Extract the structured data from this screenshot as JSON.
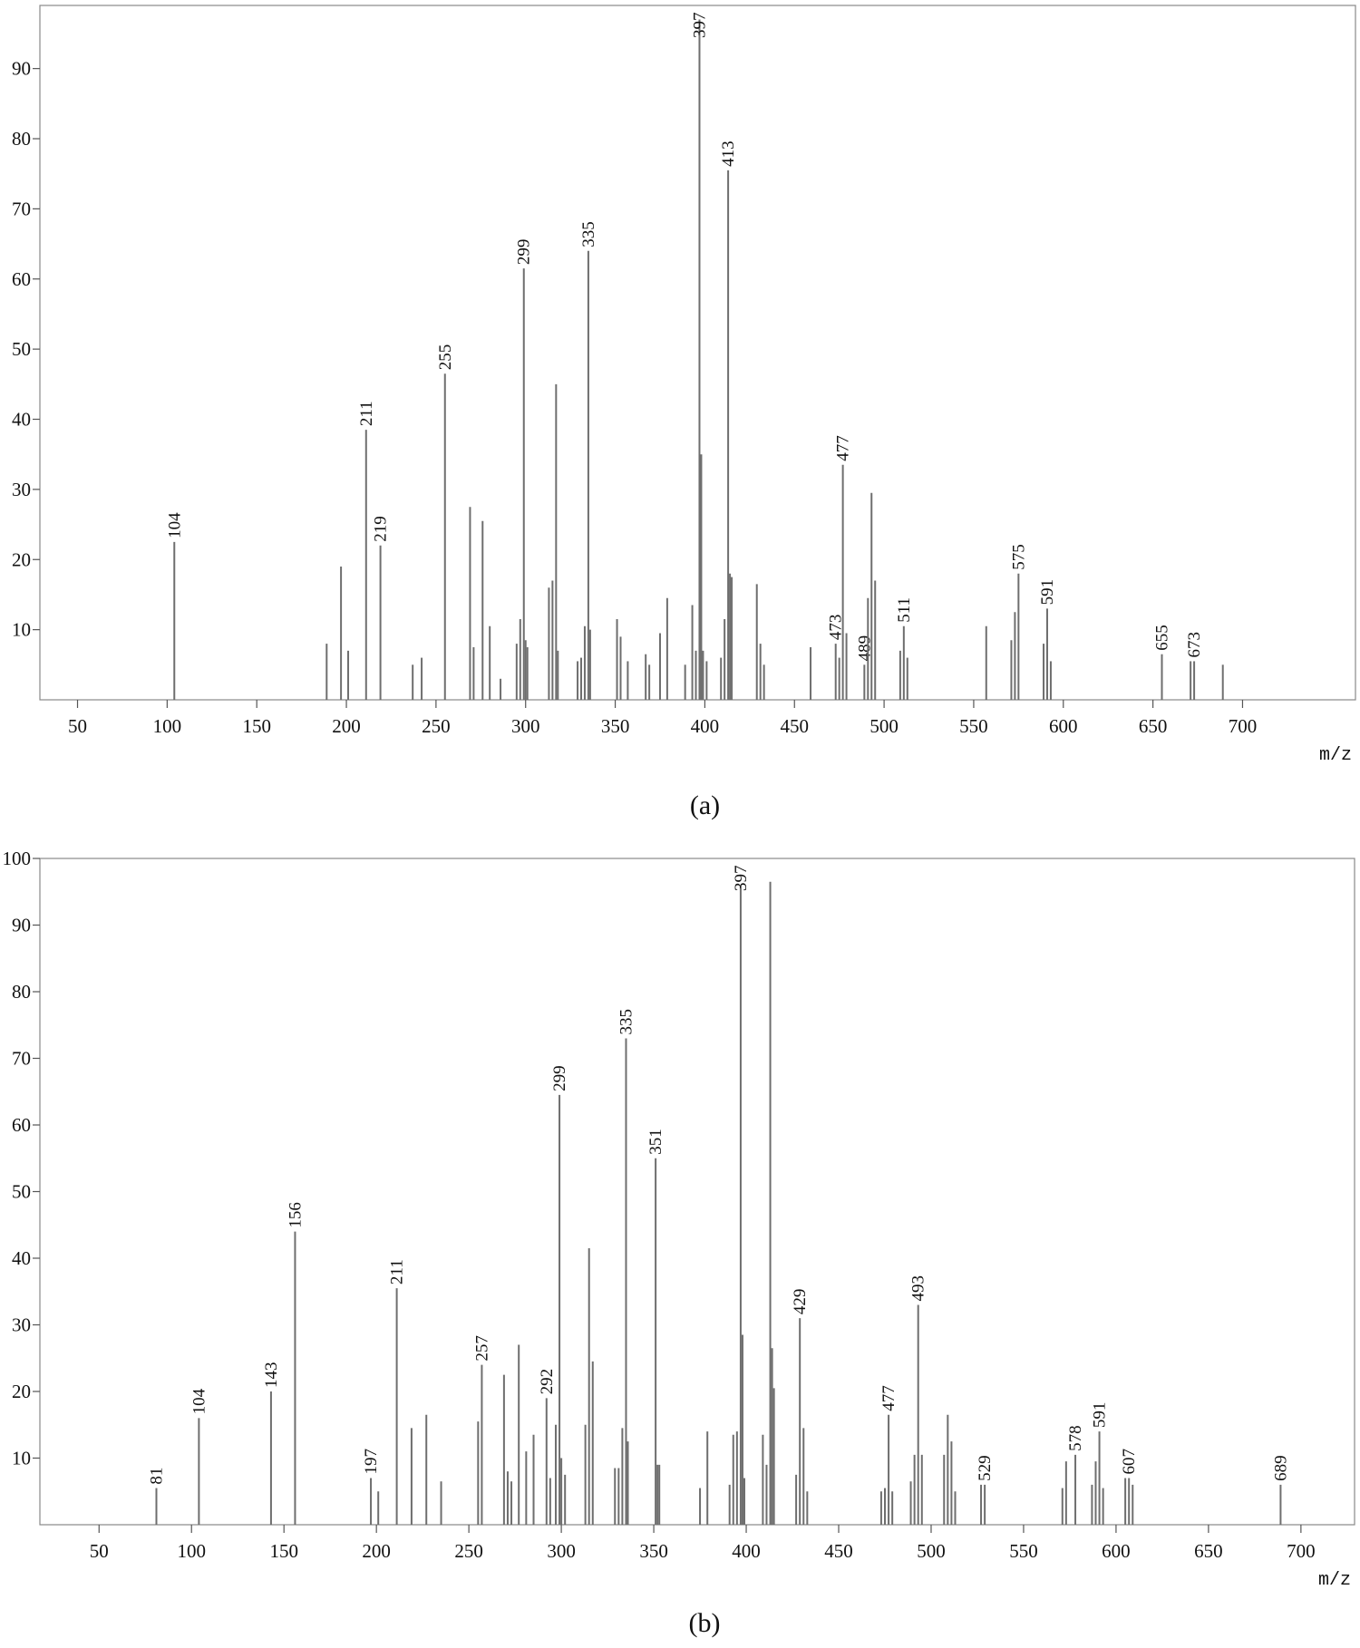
{
  "chart_data": [
    {
      "type": "bar",
      "caption": "(a)",
      "xlabel": "m/z",
      "color": "#6e6e6e",
      "xlim": [
        29,
        763
      ],
      "ylim": [
        0,
        99
      ],
      "xticks": [
        50,
        100,
        150,
        200,
        250,
        300,
        350,
        400,
        450,
        500,
        550,
        600,
        650,
        700
      ],
      "yticks": [
        10,
        20,
        30,
        40,
        50,
        60,
        70,
        80,
        90
      ],
      "x": [
        104,
        189,
        197,
        201,
        211,
        219,
        237,
        242,
        255,
        269,
        271,
        276,
        280,
        286,
        295,
        297,
        299,
        300,
        301,
        313,
        315,
        317,
        318,
        329,
        331,
        333,
        335,
        336,
        351,
        353,
        357,
        367,
        369,
        375,
        379,
        389,
        393,
        395,
        397,
        398,
        399,
        401,
        409,
        411,
        413,
        414,
        415,
        429,
        431,
        433,
        459,
        473,
        475,
        477,
        479,
        489,
        491,
        493,
        495,
        509,
        511,
        513,
        557,
        571,
        573,
        575,
        589,
        591,
        593,
        655,
        671,
        673,
        689
      ],
      "values": [
        22.5,
        8,
        19,
        7,
        38.5,
        22,
        5,
        6,
        46.5,
        27.5,
        7.5,
        25.5,
        10.5,
        3,
        8,
        11.5,
        61.5,
        8.5,
        7.5,
        16,
        17,
        45,
        7,
        5.5,
        6,
        10.5,
        64,
        10,
        11.5,
        9,
        5.5,
        6.5,
        5,
        9.5,
        14.5,
        5,
        13.5,
        7,
        97,
        35,
        7,
        5.5,
        6,
        11.5,
        75.5,
        18,
        17.5,
        16.5,
        8,
        5,
        7.5,
        8,
        6,
        33.5,
        9.5,
        5,
        14.5,
        29.5,
        17,
        7,
        10.5,
        6,
        10.5,
        8.5,
        12.5,
        18,
        8,
        13,
        5.5,
        6.5,
        5.5,
        5.5,
        5
      ],
      "labels": [
        "104",
        null,
        null,
        null,
        "211",
        "219",
        null,
        null,
        "255",
        null,
        null,
        null,
        null,
        null,
        null,
        null,
        "299",
        null,
        null,
        null,
        null,
        null,
        null,
        null,
        null,
        null,
        "335",
        null,
        null,
        null,
        null,
        null,
        null,
        null,
        null,
        null,
        null,
        null,
        "397",
        null,
        null,
        null,
        null,
        null,
        "413",
        null,
        null,
        null,
        null,
        null,
        null,
        "473",
        null,
        "477",
        null,
        "489",
        null,
        null,
        null,
        null,
        "511",
        null,
        null,
        null,
        null,
        "575",
        null,
        "591",
        null,
        "655",
        null,
        "673",
        null
      ]
    },
    {
      "type": "bar",
      "caption": "(b)",
      "xlabel": "m/z",
      "color": "#6e6e6e",
      "xlim": [
        18,
        729
      ],
      "ylim": [
        0,
        100
      ],
      "xticks": [
        50,
        100,
        150,
        200,
        250,
        300,
        350,
        400,
        450,
        500,
        550,
        600,
        650,
        700
      ],
      "yticks": [
        10,
        20,
        30,
        40,
        50,
        60,
        70,
        80,
        90,
        100
      ],
      "x": [
        81,
        104,
        143,
        156,
        197,
        201,
        211,
        219,
        227,
        235,
        255,
        257,
        269,
        271,
        273,
        277,
        281,
        285,
        292,
        294,
        297,
        299,
        300,
        302,
        313,
        315,
        317,
        329,
        331,
        333,
        335,
        336,
        351,
        352,
        353,
        375,
        379,
        391,
        393,
        395,
        397,
        398,
        399,
        409,
        411,
        413,
        414,
        415,
        427,
        429,
        431,
        433,
        473,
        475,
        477,
        479,
        489,
        491,
        493,
        495,
        507,
        509,
        511,
        513,
        527,
        529,
        571,
        573,
        578,
        587,
        589,
        591,
        593,
        605,
        607,
        609,
        689
      ],
      "values": [
        5.5,
        16,
        20,
        44,
        7,
        5,
        35.5,
        14.5,
        16.5,
        6.5,
        15.5,
        24,
        22.5,
        8,
        6.5,
        27,
        11,
        13.5,
        19,
        7,
        15,
        64.5,
        10,
        7.5,
        15,
        41.5,
        24.5,
        8.5,
        8.5,
        14.5,
        73,
        12.5,
        55,
        9,
        9,
        5.5,
        14,
        6,
        13.5,
        14,
        96,
        28.5,
        7,
        13.5,
        9,
        96.5,
        26.5,
        20.5,
        7.5,
        31,
        14.5,
        5,
        5,
        5.5,
        16.5,
        5,
        6.5,
        10.5,
        33,
        10.5,
        10.5,
        16.5,
        12.5,
        5,
        6,
        6,
        5.5,
        9.5,
        10.5,
        6,
        9.5,
        14,
        5.5,
        7,
        7,
        6,
        6
      ],
      "labels": [
        "81",
        "104",
        "143",
        "156",
        "197",
        null,
        "211",
        null,
        null,
        null,
        null,
        "257",
        null,
        null,
        null,
        null,
        null,
        null,
        "292",
        null,
        null,
        "299",
        null,
        null,
        null,
        null,
        null,
        null,
        null,
        null,
        "335",
        null,
        "351",
        null,
        null,
        null,
        null,
        null,
        null,
        null,
        "397",
        null,
        null,
        null,
        null,
        null,
        null,
        null,
        null,
        "429",
        null,
        null,
        null,
        null,
        "477",
        null,
        null,
        null,
        "493",
        null,
        null,
        null,
        null,
        null,
        null,
        "529",
        null,
        null,
        "578",
        null,
        null,
        "591",
        null,
        null,
        "607",
        null,
        "689"
      ]
    }
  ]
}
